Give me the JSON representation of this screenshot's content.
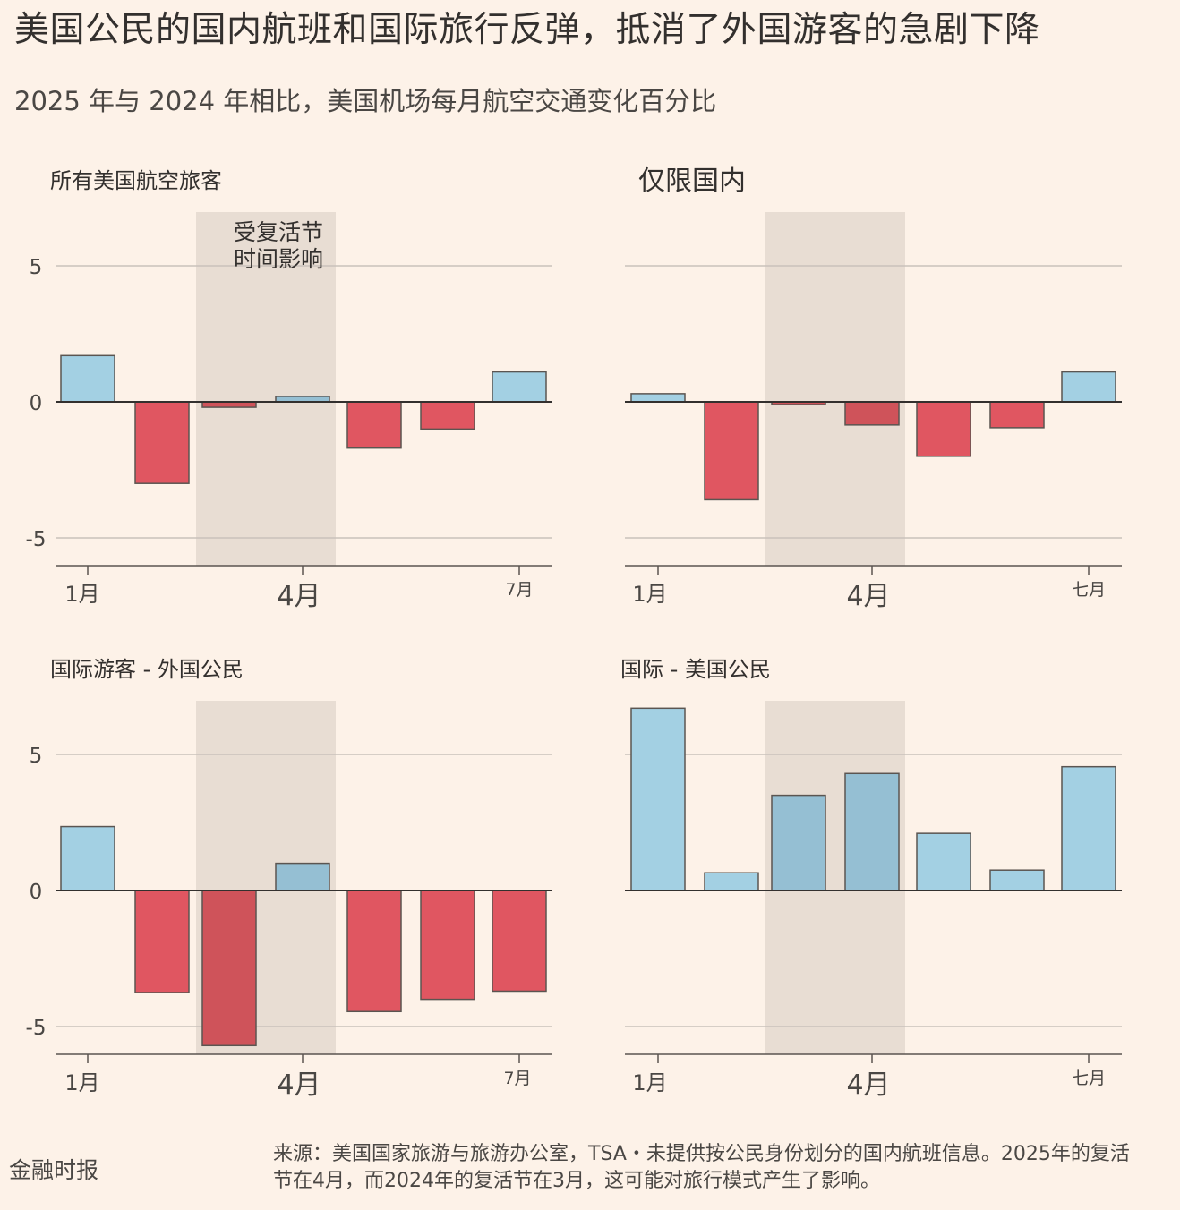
{
  "title": "美国公民的国内航班和国际旅行反弹，抵消了外国游客的急剧下降",
  "subtitle": "2025 年与 2024 年相比，美国机场每月航空交通变化百分比",
  "brand": "金融时报",
  "source": "来源：美国国家旅游与旅游办公室，TSA・未提供按公民身份划分的国内航班信息。2025年的复活节在4月，而2024年的复活节在3月，这可能对旅行模式产生了影响。",
  "annotation": {
    "line1": "受复活节",
    "line2": "时间影响"
  },
  "colors": {
    "positive": "#a3d0e3",
    "positive_shaded": "#95bfd3",
    "negative": "#e05661",
    "negative_shaded": "#cf535a",
    "shade": "#e8ddd3",
    "grid": "#c9c2bb",
    "axis": "#33302e",
    "bar_stroke": "#5b5551"
  },
  "chart_data": [
    {
      "type": "bar",
      "title": "所有美国航空旅客",
      "categories": [
        "1月",
        "2月",
        "3月",
        "4月",
        "5月",
        "6月",
        "7月"
      ],
      "values": [
        1.7,
        -3.0,
        -0.2,
        0.2,
        -1.7,
        -1.0,
        1.1
      ],
      "ylim": [
        -6,
        7
      ],
      "yticks": [
        5,
        0,
        -5
      ],
      "ytick_labels": [
        "5",
        "0",
        "-5"
      ],
      "xtick_labels": [
        "1月",
        "4月",
        "7月"
      ],
      "shaded_months": [
        "3月",
        "4月"
      ],
      "grid": true
    },
    {
      "type": "bar",
      "title": "仅限国内",
      "categories": [
        "1月",
        "2月",
        "3月",
        "4月",
        "5月",
        "6月",
        "7月"
      ],
      "values": [
        0.3,
        -3.6,
        -0.1,
        -0.85,
        -2.0,
        -0.95,
        1.1
      ],
      "ylim": [
        -6,
        7
      ],
      "yticks": [
        5,
        0,
        -5
      ],
      "ytick_labels": [],
      "xtick_labels": [
        "1月",
        "4月",
        "七月"
      ],
      "shaded_months": [
        "3月",
        "4月"
      ],
      "grid": true
    },
    {
      "type": "bar",
      "title": "国际游客 - 外国公民",
      "categories": [
        "1月",
        "2月",
        "3月",
        "4月",
        "5月",
        "6月",
        "7月"
      ],
      "values": [
        2.35,
        -3.75,
        -5.7,
        1.0,
        -4.45,
        -4.0,
        -3.7
      ],
      "ylim": [
        -6,
        7
      ],
      "yticks": [
        5,
        0,
        -5
      ],
      "ytick_labels": [
        "5",
        "0",
        "-5"
      ],
      "xtick_labels": [
        "1月",
        "4月",
        "7月"
      ],
      "shaded_months": [
        "3月",
        "4月"
      ],
      "grid": true
    },
    {
      "type": "bar",
      "title": "国际 - 美国公民",
      "categories": [
        "1月",
        "2月",
        "3月",
        "4月",
        "5月",
        "6月",
        "7月"
      ],
      "values": [
        6.7,
        0.65,
        3.5,
        4.3,
        2.1,
        0.75,
        4.55
      ],
      "ylim": [
        -6,
        7
      ],
      "yticks": [
        5,
        0,
        -5
      ],
      "ytick_labels": [],
      "xtick_labels": [
        "1月",
        "4月",
        "七月"
      ],
      "shaded_months": [
        "3月",
        "4月"
      ],
      "grid": true
    }
  ]
}
